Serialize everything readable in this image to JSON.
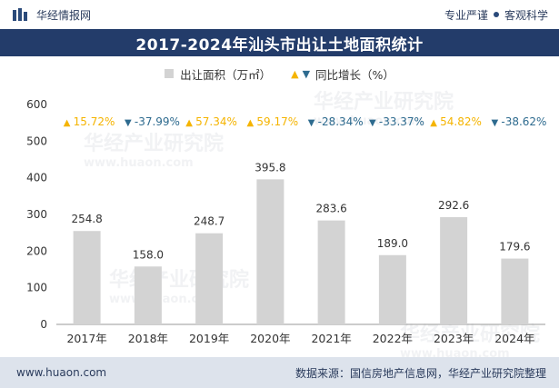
{
  "header": {
    "brand": "华经情报网",
    "tagline_left": "专业严谨",
    "tagline_right": "客观科学"
  },
  "chart_data": {
    "type": "bar",
    "title": "2017-2024年汕头市出让土地面积统计",
    "categories": [
      "2017年",
      "2018年",
      "2019年",
      "2020年",
      "2021年",
      "2022年",
      "2023年",
      "2024年"
    ],
    "series": [
      {
        "name": "出让面积（万㎡）",
        "values": [
          254.8,
          158.0,
          248.7,
          395.8,
          283.6,
          189.0,
          292.6,
          179.6
        ]
      }
    ],
    "value_labels": [
      "254.8",
      "158.0",
      "248.7",
      "395.8",
      "283.6",
      "189.0",
      "292.6",
      "179.6"
    ],
    "growth": {
      "name": "同比增长（%）",
      "values": [
        15.72,
        -37.99,
        57.34,
        59.17,
        -28.34,
        -33.37,
        54.82,
        -38.62
      ],
      "labels": [
        "15.72%",
        "-37.99%",
        "57.34%",
        "59.17%",
        "-28.34%",
        "-33.37%",
        "54.82%",
        "-38.62%"
      ]
    },
    "ylim": [
      0,
      600
    ],
    "yticks": [
      "0",
      "100",
      "200",
      "300",
      "400",
      "500",
      "600"
    ],
    "xlabel": "",
    "ylabel": "",
    "grid": false,
    "legend": "top-center",
    "colors": {
      "bar": "#d3d3d3",
      "up": "#f5b400",
      "down": "#2e6b8f",
      "title_bg": "#233c6a"
    }
  },
  "legend": {
    "area_label": "出让面积（万㎡）",
    "growth_label": "同比增长（%）"
  },
  "footer": {
    "website": "www.huaon.com",
    "source": "数据来源：国信房地产信息网，华经产业研究院整理"
  },
  "watermark": {
    "text": "华经产业研究院",
    "url": "www.huaon.com"
  }
}
